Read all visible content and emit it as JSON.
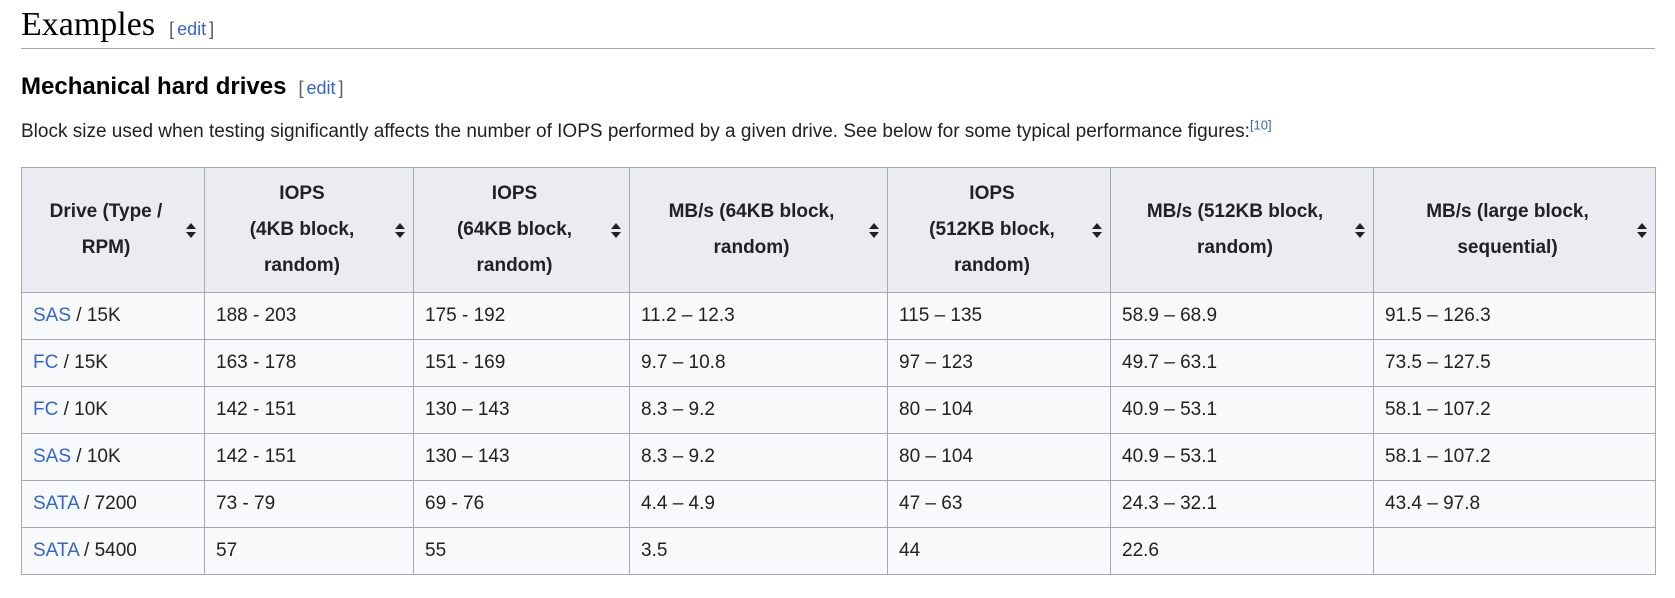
{
  "page": {
    "h2": {
      "title": "Examples",
      "edit_open": "[",
      "edit_label": "edit",
      "edit_close": "]"
    },
    "h3": {
      "title": "Mechanical hard drives",
      "edit_open": "[",
      "edit_label": "edit",
      "edit_close": "]"
    },
    "paragraph": "Block size used when testing significantly affects the number of IOPS performed by a given drive. See below for some typical performance figures:",
    "reference_marker": "[10]"
  },
  "colors": {
    "link_blue": "#3366cc",
    "header_background": "#eaecf0",
    "row_background": "#f8f9fa",
    "table_border": "#a2a9b1",
    "body_text": "#202122",
    "edit_bracket": "#54595d"
  },
  "table": {
    "headers": [
      {
        "label": "Drive (Type /\nRPM)",
        "icon": "sort-both-icon"
      },
      {
        "label": "IOPS\n(4KB block,\nrandom)",
        "icon": "sort-both-icon"
      },
      {
        "label": "IOPS\n(64KB block,\nrandom)",
        "icon": "sort-both-icon"
      },
      {
        "label": "MB/s (64KB block,\nrandom)",
        "icon": "sort-both-icon"
      },
      {
        "label": "IOPS\n(512KB block,\nrandom)",
        "icon": "sort-both-icon"
      },
      {
        "label": "MB/s (512KB block,\nrandom)",
        "icon": "sort-both-icon"
      },
      {
        "label": "MB/s (large block,\nsequential)",
        "icon": "sort-both-icon"
      }
    ],
    "rows": [
      {
        "drive_link": "SAS",
        "drive_suffix": " / 15K",
        "values": [
          "188 - 203",
          "175 - 192",
          "11.2 – 12.3",
          "115 – 135",
          "58.9 – 68.9",
          "91.5 – 126.3"
        ]
      },
      {
        "drive_link": "FC",
        "drive_suffix": " / 15K",
        "values": [
          "163 - 178",
          "151 - 169",
          "9.7 – 10.8",
          "97 – 123",
          "49.7 – 63.1",
          "73.5 – 127.5"
        ]
      },
      {
        "drive_link": "FC",
        "drive_suffix": " / 10K",
        "values": [
          "142 - 151",
          "130 – 143",
          "8.3 – 9.2",
          "80 – 104",
          "40.9 – 53.1",
          "58.1 – 107.2"
        ]
      },
      {
        "drive_link": "SAS",
        "drive_suffix": " / 10K",
        "values": [
          "142 - 151",
          "130 – 143",
          "8.3 – 9.2",
          "80 – 104",
          "40.9 – 53.1",
          "58.1 – 107.2"
        ]
      },
      {
        "drive_link": "SATA",
        "drive_suffix": " / 7200",
        "values": [
          "73 - 79",
          "69 - 76",
          "4.4 – 4.9",
          "47 – 63",
          "24.3 – 32.1",
          "43.4 – 97.8"
        ]
      },
      {
        "drive_link": "SATA",
        "drive_suffix": " / 5400",
        "values": [
          "57",
          "55",
          "3.5",
          "44",
          "22.6",
          ""
        ]
      }
    ]
  }
}
